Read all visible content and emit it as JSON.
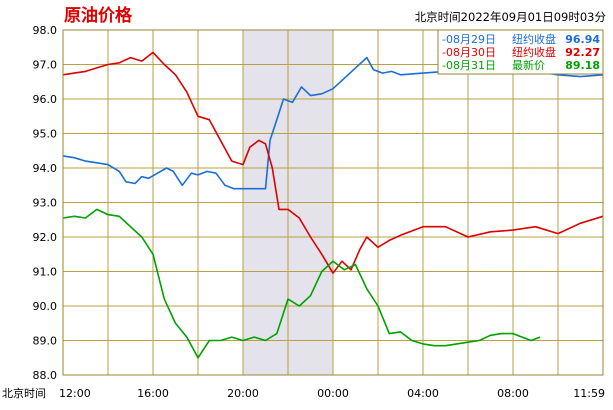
{
  "header": {
    "title": "原油价格",
    "timestamp": "北京时间2022年09月01日09时03分"
  },
  "chart_data": {
    "type": "line",
    "title": "原油价格",
    "ylim": [
      88.0,
      98.0
    ],
    "yticks": [
      "98.0",
      "97.0",
      "96.0",
      "95.0",
      "94.0",
      "93.0",
      "92.0",
      "91.0",
      "90.0",
      "89.0",
      "88.0"
    ],
    "x_axis_label": "北京时间",
    "xticks": [
      "12:00",
      "16:00",
      "20:00",
      "00:00",
      "04:00",
      "08:00",
      "11:59"
    ],
    "xlim_hours": [
      0,
      24
    ],
    "shaded_period_hours": [
      8,
      12
    ],
    "grid": true,
    "legend_position": "top-right",
    "legend": [
      {
        "date": "08月29日",
        "label": "纽约收盘",
        "value": "96.94",
        "color": "#1a6ed8"
      },
      {
        "date": "08月30日",
        "label": "纽约收盘",
        "value": "92.27",
        "color": "#dd0000"
      },
      {
        "date": "08月31日",
        "label": "最新价",
        "value": "89.18",
        "color": "#00a000"
      }
    ],
    "series": [
      {
        "color": "#1a6ed8",
        "x": [
          0,
          0.5,
          1.0,
          1.5,
          2.0,
          2.5,
          2.8,
          3.2,
          3.5,
          3.8,
          4.2,
          4.6,
          4.9,
          5.3,
          5.7,
          6.0,
          6.4,
          6.8,
          7.2,
          7.6,
          8.0,
          8.5,
          9.0,
          9.2,
          9.5,
          9.8,
          10.2,
          10.6,
          11.0,
          11.5,
          12.0,
          12.5,
          13.0,
          13.5,
          13.8,
          14.2,
          14.6,
          15.0,
          16.0,
          17.0,
          18.0,
          19.0,
          20.0,
          21.0,
          22.0,
          23.0,
          24.0
        ],
        "values": [
          94.35,
          94.3,
          94.2,
          94.15,
          94.1,
          93.9,
          93.6,
          93.55,
          93.75,
          93.7,
          93.85,
          94.0,
          93.9,
          93.5,
          93.85,
          93.8,
          93.9,
          93.85,
          93.5,
          93.4,
          93.4,
          93.4,
          93.4,
          94.8,
          95.4,
          96.0,
          95.9,
          96.35,
          96.1,
          96.15,
          96.3,
          96.6,
          96.9,
          97.2,
          96.85,
          96.75,
          96.8,
          96.7,
          96.75,
          96.8,
          96.75,
          96.8,
          96.75,
          96.8,
          96.7,
          96.65,
          96.7
        ]
      },
      {
        "color": "#dd0000",
        "x": [
          0,
          0.5,
          1.0,
          1.5,
          2.0,
          2.5,
          3.0,
          3.5,
          4.0,
          4.5,
          5.0,
          5.5,
          6.0,
          6.5,
          7.0,
          7.5,
          8.0,
          8.3,
          8.7,
          9.0,
          9.3,
          9.6,
          10.0,
          10.5,
          11.0,
          11.5,
          12.0,
          12.4,
          12.8,
          13.2,
          13.5,
          14.0,
          14.5,
          15.0,
          16.0,
          17.0,
          18.0,
          19.0,
          20.0,
          21.0,
          22.0,
          23.0,
          24.0
        ],
        "values": [
          96.7,
          96.75,
          96.8,
          96.9,
          97.0,
          97.05,
          97.2,
          97.1,
          97.35,
          97.0,
          96.7,
          96.2,
          95.5,
          95.4,
          94.8,
          94.2,
          94.1,
          94.6,
          94.8,
          94.7,
          94.0,
          92.8,
          92.8,
          92.55,
          92.0,
          91.5,
          90.95,
          91.3,
          91.05,
          91.65,
          92.0,
          91.7,
          91.9,
          92.05,
          92.3,
          92.3,
          92.0,
          92.15,
          92.2,
          92.3,
          92.1,
          92.4,
          92.6
        ]
      },
      {
        "color": "#00a000",
        "x": [
          0,
          0.5,
          1.0,
          1.5,
          2.0,
          2.5,
          3.0,
          3.5,
          4.0,
          4.5,
          5.0,
          5.5,
          6.0,
          6.5,
          7.0,
          7.5,
          8.0,
          8.5,
          9.0,
          9.5,
          10.0,
          10.5,
          11.0,
          11.5,
          12.0,
          12.5,
          13.0,
          13.5,
          14.0,
          14.5,
          15.0,
          15.5,
          16.0,
          16.5,
          17.0,
          17.5,
          18.0,
          18.5,
          19.0,
          19.5,
          20.0,
          20.8,
          21.2
        ],
        "values": [
          92.55,
          92.6,
          92.55,
          92.8,
          92.65,
          92.6,
          92.3,
          92.0,
          91.5,
          90.2,
          89.5,
          89.1,
          88.5,
          89.0,
          89.0,
          89.1,
          89.0,
          89.1,
          89.0,
          89.2,
          90.2,
          90.0,
          90.3,
          91.0,
          91.3,
          91.05,
          91.2,
          90.5,
          90.0,
          89.2,
          89.25,
          89.0,
          88.9,
          88.85,
          88.85,
          88.9,
          88.95,
          89.0,
          89.15,
          89.2,
          89.2,
          89.0,
          89.1
        ]
      }
    ]
  }
}
